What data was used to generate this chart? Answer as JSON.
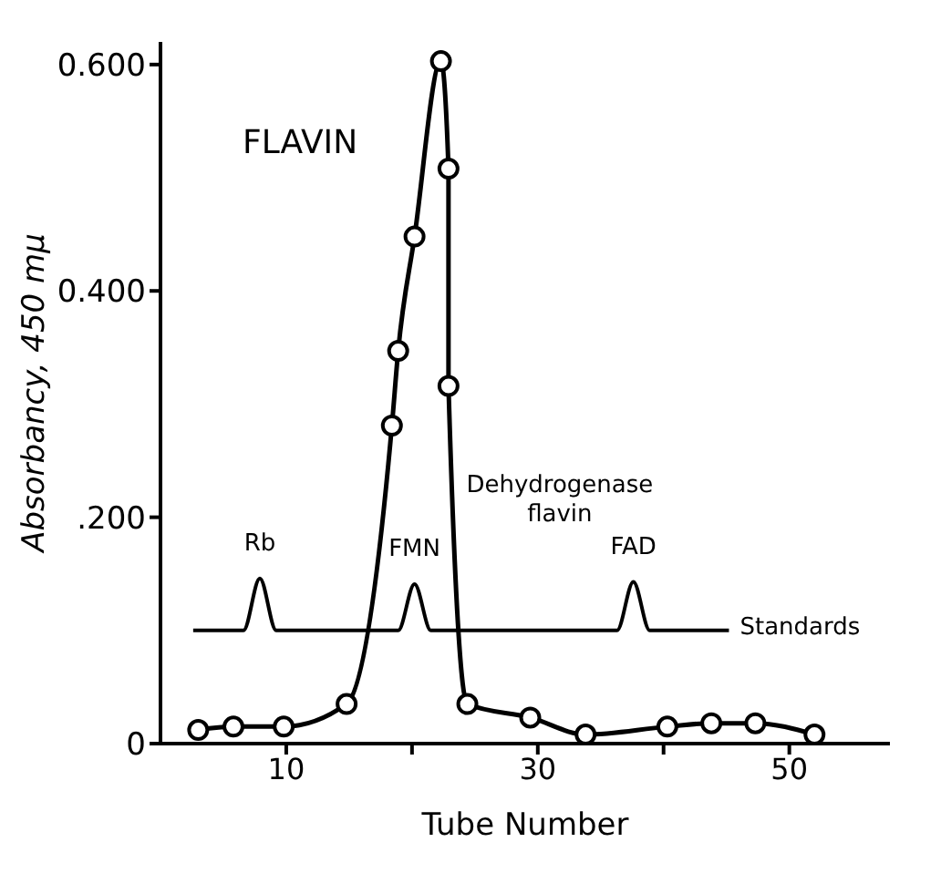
{
  "chart_data": {
    "type": "line",
    "xlabel": "Tube Number",
    "ylabel": "Absorbancy, 450 mμ",
    "xlim": [
      0,
      58
    ],
    "ylim": [
      0,
      0.62
    ],
    "xticks": [
      10,
      {
        "value": 20,
        "label": null
      },
      30,
      {
        "value": 40,
        "label": null
      },
      50
    ],
    "yticks": [
      0,
      {
        "value": 0.2,
        "label": ".200"
      },
      {
        "value": 0.4,
        "label": "0.400"
      },
      {
        "value": 0.6,
        "label": "0.600"
      }
    ],
    "grid": false,
    "legend": false,
    "series": [
      {
        "color": "#000000",
        "marker": "circle",
        "x": [
          3,
          5.8,
          9.8,
          14.8,
          18.4,
          18.9,
          20.2,
          22.3,
          22.9,
          22.9,
          24.4,
          29.4,
          33.8,
          40.3,
          43.8,
          47.3,
          52
        ],
        "values": [
          0.012,
          0.015,
          0.015,
          0.035,
          0.281,
          0.347,
          0.448,
          0.603,
          0.508,
          0.316,
          0.035,
          0.023,
          0.008,
          0.015,
          0.018,
          0.018,
          0.008
        ]
      },
      {
        "name": "Standards",
        "color": "#000000",
        "marker": "none",
        "x": [
          2.6,
          6.6,
          7.9,
          9.2,
          18.9,
          20.2,
          21.5,
          36.3,
          37.6,
          38.9,
          45.2
        ],
        "values": [
          0.1,
          0.1,
          0.146,
          0.1,
          0.1,
          0.141,
          0.1,
          0.1,
          0.143,
          0.1,
          0.1
        ]
      }
    ],
    "annotations": [
      "FLAVIN",
      {
        "text": "Rb",
        "x": 7.9,
        "y": 0.146
      },
      {
        "text": "FMN",
        "x": 20.2,
        "y": 0.141
      },
      {
        "text": "FAD",
        "x": 37.6,
        "y": 0.143
      },
      {
        "text": "Dehydrogenase flavin",
        "x": 22.9,
        "y": 0.22
      }
    ]
  }
}
